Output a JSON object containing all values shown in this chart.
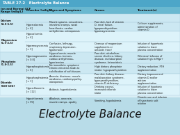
{
  "title": "TABLE 27-2   Electrolyte Balance",
  "header": [
    "Ion and Normal ECF\nRange [mEq/L]",
    "Disorder [mEq/L]",
    "Signs and Symptoms",
    "Causes",
    "Treatment(s)"
  ],
  "rows": [
    [
      "Calcium\n[4.5-5.5]",
      "Hypercalcemia\n[> 4]",
      "Muscle spasms, convulsions,\nintestinal cramps, weak\nheart beats, cardiac\narrhythmias, osteoporosis",
      "Poor diet, lack of vitamin\nD, renal failure,\nhypoparathyroidism,\nhypomagnesemia",
      "Calcium supplements,\nadministration of\nvitamin D"
    ],
    [
      "",
      "Hypocalcemia\n[< 4]",
      "",
      "",
      ""
    ],
    [
      "Magnesium\n[1.5-2.5]",
      "Hypermagnesemia\n[> 3]",
      "Confusion, lethargy,\nrespiratory depression,\nhypotension",
      "Overuse of magnesium\nsupplements or\nantacids (rare)",
      "Infusion of hypertonic\nsolution to lower\nplasma concentration"
    ],
    [
      "",
      "Hypomagnesemia\n[< 0.8]",
      "Hypocalcemia, muscle\nweakness, tremors,\ncardiac arrhythmias,\nhypertension",
      "Poor diet, alcoholism,\nsevere diarrhea, kidney\ndisease, malabsorption\nsyndrome, ketoacidosis",
      "IV/enteral infusion of\nsolution high in Mg2+"
    ],
    [
      "Phosphate\n[1.8-2.5]",
      "Hyperphosphatemia\n[> 6]",
      "No immediate symptoms;\nchronic elevation leads to\ncalcification of soft tissues",
      "High dietary phosphate\nintake; hypoparathyroidism",
      "Dietary reduction; PTH\nsupplementation"
    ],
    [
      "",
      "Hypophosphatemia\n[< 1]",
      "Anemia, dizziness, muscle\nweakness, cardiomyopathy,\nosteoporosis",
      "Poor diet, kidney disease,\nmalabsorption syndrome,\nhyperparathyroidism,\nvitamin D deficiency",
      "Dietary improvement;\nvitamin D and/or\ncalcium\nsupplementation"
    ],
    [
      "Chloride\n[100-106]",
      "Hyperchloremia\n[> 112]",
      "Acidosis, hyperkalemia",
      "Drinking excess;\nincreased chloride\nintake",
      "Infusion of hypotonic\nsolution to lower\nplasma concentration"
    ],
    [
      "",
      "Hypochloremia\n[< 95]",
      "Alkalosis, anorexia,\nmuscle cramps, apathy",
      "Vomiting, hypokalemia",
      "Diuretic use and infusion\nof hypertonic salt\nsolution"
    ]
  ],
  "bottom_title": "Electrolyte Balance",
  "title_bar_color": "#4da6c8",
  "header_bg": "#6ab8d0",
  "table_bg": "#d9eef5",
  "section_colors": [
    "#cce8f2",
    "#ddf3fa",
    "#cce8f2",
    "#ddf3fa"
  ],
  "bottom_bg": "#b8dce8",
  "divider_color": "#99bbcc",
  "border_color": "#aaccdd"
}
